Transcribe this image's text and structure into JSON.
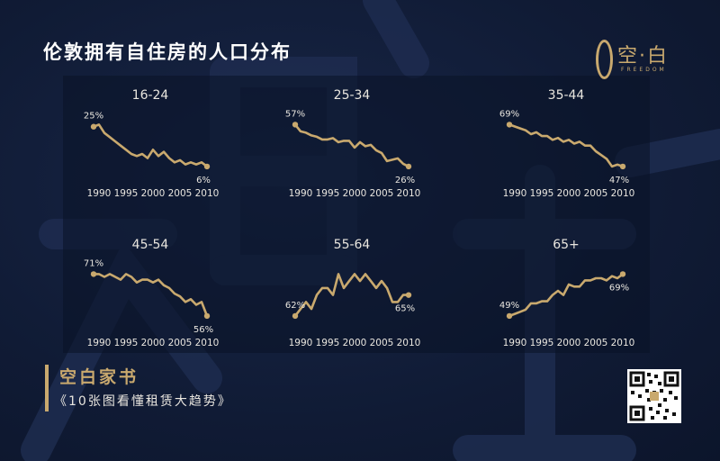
{
  "header": {
    "title": "伦敦拥有自住房的人口分布"
  },
  "logo": {
    "text": "空·白",
    "sub": "FREEDOM"
  },
  "footer": {
    "title": "空白家书",
    "subtitle": "《10张图看懂租赁大趋势》"
  },
  "qr": {
    "icon": "qr-code-icon"
  },
  "colors": {
    "line": "#c9a96e",
    "background": "#0f1a33",
    "text": "#e9e6df"
  },
  "chart_data": [
    {
      "type": "line",
      "title": "16-24",
      "xticks": [
        "1990",
        "1995",
        "2000",
        "2005",
        "2010"
      ],
      "x": [
        1989,
        1990,
        1991,
        1992,
        1993,
        1994,
        1995,
        1996,
        1997,
        1998,
        1999,
        2000,
        2001,
        2002,
        2003,
        2004,
        2005,
        2006,
        2007,
        2008,
        2009,
        2010
      ],
      "values": [
        25,
        26,
        22,
        20,
        18,
        16,
        14,
        12,
        11,
        12,
        10,
        14,
        11,
        13,
        10,
        8,
        9,
        7,
        8,
        7,
        8,
        6
      ],
      "start_label": "25%",
      "end_label": "6%"
    },
    {
      "type": "line",
      "title": "25-34",
      "xticks": [
        "1990",
        "1995",
        "2000",
        "2005",
        "2010"
      ],
      "x": [
        1989,
        1990,
        1991,
        1992,
        1993,
        1994,
        1995,
        1996,
        1997,
        1998,
        1999,
        2000,
        2001,
        2002,
        2003,
        2004,
        2005,
        2006,
        2007,
        2008,
        2009,
        2010
      ],
      "values": [
        57,
        52,
        51,
        49,
        48,
        46,
        46,
        47,
        44,
        45,
        45,
        40,
        44,
        41,
        42,
        38,
        36,
        30,
        31,
        32,
        28,
        26
      ],
      "start_label": "57%",
      "end_label": "26%"
    },
    {
      "type": "line",
      "title": "35-44",
      "xticks": [
        "1990",
        "1995",
        "2000",
        "2005",
        "2010"
      ],
      "x": [
        1989,
        1990,
        1991,
        1992,
        1993,
        1994,
        1995,
        1996,
        1997,
        1998,
        1999,
        2000,
        2001,
        2002,
        2003,
        2004,
        2005,
        2006,
        2007,
        2008,
        2009,
        2010
      ],
      "values": [
        69,
        68,
        67,
        66,
        64,
        65,
        63,
        63,
        61,
        62,
        60,
        61,
        59,
        60,
        58,
        58,
        55,
        53,
        51,
        47,
        48,
        47
      ],
      "start_label": "69%",
      "end_label": "47%"
    },
    {
      "type": "line",
      "title": "45-54",
      "xticks": [
        "1990",
        "1995",
        "2000",
        "2005",
        "2010"
      ],
      "x": [
        1989,
        1990,
        1991,
        1992,
        1993,
        1994,
        1995,
        1996,
        1997,
        1998,
        1999,
        2000,
        2001,
        2002,
        2003,
        2004,
        2005,
        2006,
        2007,
        2008,
        2009,
        2010
      ],
      "values": [
        71,
        71,
        70,
        71,
        70,
        69,
        71,
        70,
        68,
        69,
        69,
        68,
        69,
        67,
        66,
        64,
        63,
        61,
        62,
        60,
        61,
        56
      ],
      "start_label": "71%",
      "end_label": "56%"
    },
    {
      "type": "line",
      "title": "55-64",
      "xticks": [
        "1990",
        "1995",
        "2000",
        "2005",
        "2010"
      ],
      "x": [
        1989,
        1990,
        1991,
        1992,
        1993,
        1994,
        1995,
        1996,
        1997,
        1998,
        1999,
        2000,
        2001,
        2002,
        2003,
        2004,
        2005,
        2006,
        2007,
        2008,
        2009,
        2010
      ],
      "values": [
        62,
        63,
        64,
        63,
        65,
        66,
        66,
        65,
        68,
        66,
        67,
        68,
        67,
        68,
        67,
        66,
        67,
        66,
        64,
        64,
        65,
        65
      ],
      "start_label": "62%",
      "end_label": "65%"
    },
    {
      "type": "line",
      "title": "65+",
      "xticks": [
        "1990",
        "1995",
        "2000",
        "2005",
        "2010"
      ],
      "x": [
        1989,
        1990,
        1991,
        1992,
        1993,
        1994,
        1995,
        1996,
        1997,
        1998,
        1999,
        2000,
        2001,
        2002,
        2003,
        2004,
        2005,
        2006,
        2007,
        2008,
        2009,
        2010
      ],
      "values": [
        49,
        50,
        51,
        52,
        55,
        55,
        56,
        56,
        59,
        61,
        59,
        64,
        63,
        63,
        66,
        66,
        67,
        67,
        66,
        68,
        67,
        69
      ],
      "start_label": "49%",
      "end_label": "69%"
    }
  ]
}
